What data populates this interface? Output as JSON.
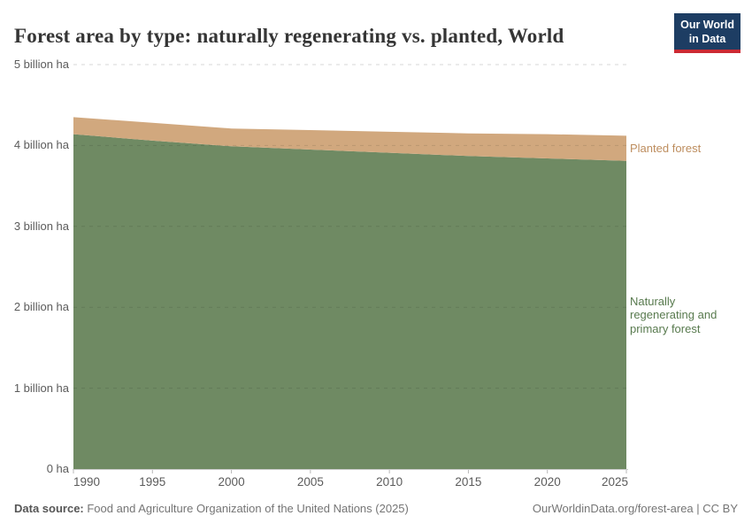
{
  "header": {
    "title": "Forest area by type: naturally regenerating vs. planted, World",
    "logo": {
      "line1": "Our World",
      "line2": "in Data",
      "bg_color": "#1d3d63",
      "bar_color": "#cc2a33"
    }
  },
  "chart_data": {
    "type": "area",
    "stacked": true,
    "title": "Forest area by type: naturally regenerating vs. planted, World",
    "unit": "billion ha",
    "x": [
      1990,
      1995,
      2000,
      2005,
      2010,
      2015,
      2020,
      2025
    ],
    "series": [
      {
        "name": "Naturally regenerating and primary forest",
        "values": [
          4.14,
          4.06,
          3.99,
          3.95,
          3.91,
          3.87,
          3.84,
          3.81
        ],
        "color": "#6f8a63",
        "label_color": "#587a4e"
      },
      {
        "name": "Planted forest",
        "values": [
          0.21,
          0.22,
          0.22,
          0.24,
          0.26,
          0.28,
          0.3,
          0.31
        ],
        "color": "#d1a87e",
        "label_color": "#bd8d5e"
      }
    ],
    "xlabel": "",
    "ylabel": "",
    "ylim": [
      0,
      5
    ],
    "yticks": [
      {
        "value": 0,
        "label": "0 ha"
      },
      {
        "value": 1,
        "label": "1 billion ha"
      },
      {
        "value": 2,
        "label": "2 billion ha"
      },
      {
        "value": 3,
        "label": "3 billion ha"
      },
      {
        "value": 4,
        "label": "4 billion ha"
      },
      {
        "value": 5,
        "label": "5 billion ha"
      }
    ],
    "xticks": [
      1990,
      1995,
      2000,
      2005,
      2010,
      2015,
      2020,
      2025
    ],
    "grid": "dashed-horizontal",
    "legend_position": "right"
  },
  "footer": {
    "source_label": "Data source:",
    "source_text": " Food and Agriculture Organization of the United Nations (2025)",
    "right_text": "OurWorldinData.org/forest-area | CC BY"
  }
}
